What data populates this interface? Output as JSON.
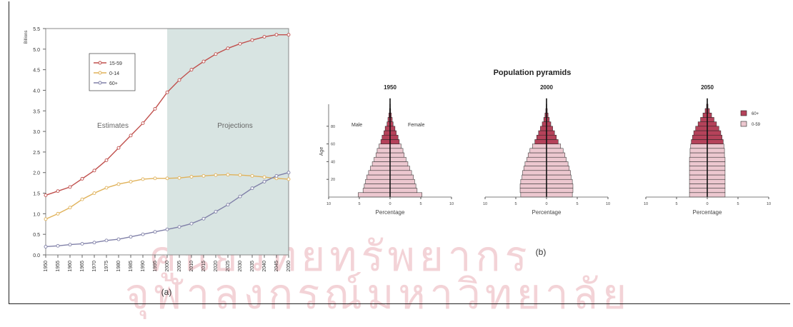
{
  "figure": {
    "panel_a_caption": "(a)",
    "panel_b_caption": "(b)",
    "watermark_line1": "ศูนย์วิทยทรัพยากร",
    "watermark_line2": "จุฬาลงกรณ์มหาวิทยาลัย"
  },
  "colors": {
    "line_15_59": "#c0504d",
    "line_0_14": "#e0b25a",
    "line_60plus": "#8080a8",
    "projection_bg": "#d8e4e2",
    "pyramid_old": "#b5425a",
    "pyramid_young": "#ecc7cf"
  },
  "chart_data": [
    {
      "type": "line",
      "ylabel": "Billions",
      "ylim": [
        0,
        5.5
      ],
      "yticks": [
        0.0,
        0.5,
        1.0,
        1.5,
        2.0,
        2.5,
        3.0,
        3.5,
        4.0,
        4.5,
        5.0,
        5.5
      ],
      "ytick_labels": [
        "0.0",
        "0.5",
        "1.0",
        "1.5",
        "2.0",
        "2.5",
        "3.0",
        "3.5",
        "4.0",
        "4.5",
        "5.0",
        "5.5"
      ],
      "xlim": [
        1950,
        2050
      ],
      "xticks": [
        1950,
        1955,
        1960,
        1965,
        1970,
        1975,
        1980,
        1985,
        1990,
        1995,
        2000,
        2005,
        2010,
        2015,
        2020,
        2025,
        2030,
        2035,
        2040,
        2045,
        2050
      ],
      "region_labels": {
        "estimates": "Estimates",
        "projections": "Projections"
      },
      "projection_start": 2000,
      "legend_position": "top-left",
      "x": [
        1950,
        1955,
        1960,
        1965,
        1970,
        1975,
        1980,
        1985,
        1990,
        1995,
        2000,
        2005,
        2010,
        2015,
        2020,
        2025,
        2030,
        2035,
        2040,
        2045,
        2050
      ],
      "series": [
        {
          "name": "15-59",
          "values": [
            1.45,
            1.55,
            1.65,
            1.85,
            2.05,
            2.3,
            2.6,
            2.9,
            3.2,
            3.55,
            3.95,
            4.25,
            4.5,
            4.7,
            4.88,
            5.02,
            5.13,
            5.22,
            5.3,
            5.35,
            5.35
          ]
        },
        {
          "name": "0-14",
          "values": [
            0.87,
            1.0,
            1.15,
            1.35,
            1.5,
            1.63,
            1.72,
            1.78,
            1.84,
            1.86,
            1.86,
            1.87,
            1.9,
            1.92,
            1.94,
            1.95,
            1.94,
            1.92,
            1.89,
            1.86,
            1.84
          ]
        },
        {
          "name": "60+",
          "values": [
            0.2,
            0.22,
            0.25,
            0.27,
            0.3,
            0.35,
            0.38,
            0.44,
            0.5,
            0.56,
            0.62,
            0.68,
            0.76,
            0.88,
            1.05,
            1.22,
            1.42,
            1.62,
            1.78,
            1.92,
            2.0
          ]
        }
      ]
    },
    {
      "type": "bar",
      "title": "Population pyramids",
      "xlabel": "Percentage",
      "ylabel": "Age",
      "xlim": [
        -10,
        10
      ],
      "xticks": [
        -10,
        -5,
        0,
        5,
        10
      ],
      "xtick_labels": [
        "10",
        "5",
        "0",
        "5",
        "10"
      ],
      "yticks": [
        20,
        40,
        60,
        80
      ],
      "yticks_shown_on": "1950",
      "sex_labels": {
        "left": "Male",
        "right": "Female"
      },
      "legend": [
        "60+",
        "0-59"
      ],
      "legend_position": "right",
      "age_groups": [
        "0",
        "5",
        "10",
        "15",
        "20",
        "25",
        "30",
        "35",
        "40",
        "45",
        "50",
        "55",
        "60",
        "65",
        "70",
        "75",
        "80",
        "85",
        "90",
        "95",
        "100"
      ],
      "old_age_start_index": 12,
      "pyramids": [
        {
          "year": "1950",
          "values": [
            5.2,
            4.4,
            4.2,
            4.0,
            3.8,
            3.5,
            3.2,
            2.9,
            2.6,
            2.3,
            2.1,
            1.8,
            1.5,
            1.3,
            1.0,
            0.8,
            0.5,
            0.35,
            0.2,
            0.1,
            0.05
          ]
        },
        {
          "year": "2000",
          "values": [
            4.2,
            4.3,
            4.3,
            4.2,
            4.0,
            3.9,
            3.7,
            3.5,
            3.2,
            3.0,
            2.7,
            2.3,
            1.9,
            1.6,
            1.3,
            1.0,
            0.7,
            0.45,
            0.25,
            0.12,
            0.05
          ]
        },
        {
          "year": "2050",
          "values": [
            2.9,
            2.9,
            2.9,
            2.9,
            2.9,
            2.9,
            2.9,
            2.9,
            2.9,
            2.8,
            2.8,
            2.7,
            2.6,
            2.4,
            2.2,
            1.9,
            1.5,
            1.1,
            0.7,
            0.35,
            0.12
          ]
        }
      ]
    }
  ]
}
